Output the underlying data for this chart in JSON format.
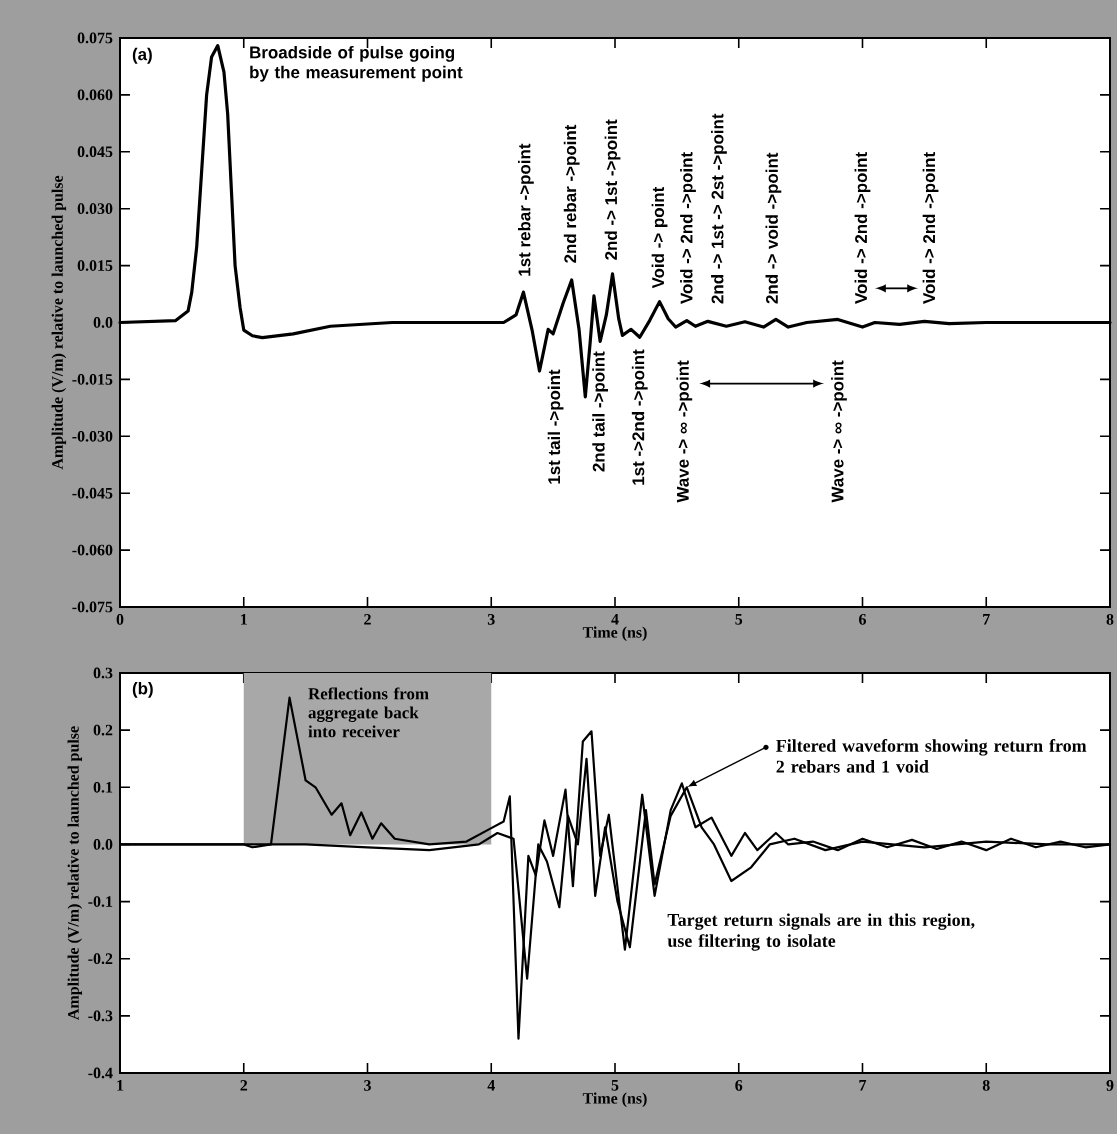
{
  "chart_data": [
    {
      "type": "line",
      "xlabel": "Time (ns)",
      "ylabel": "Amplitude (V/m) relative to launched pulse",
      "xlim": [
        0,
        8
      ],
      "ylim": [
        -0.075,
        0.075
      ],
      "xticks": [
        0,
        1,
        2,
        3,
        4,
        5,
        6,
        7,
        8
      ],
      "yticks": [
        -0.075,
        {
          "value": -0.06,
          "label": "-0.060"
        },
        -0.045,
        {
          "value": -0.03,
          "label": "-0.030"
        },
        -0.015,
        {
          "value": 0,
          "label": "0.0"
        },
        0.015,
        {
          "value": 0.03,
          "label": "0.030"
        },
        0.045,
        {
          "value": 0.06,
          "label": "0.060"
        },
        0.075
      ],
      "series": [
        {
          "color": "#000000",
          "x": [
            0,
            0.45,
            0.55,
            0.58,
            0.62,
            0.66,
            0.7,
            0.74,
            0.79,
            0.84,
            0.87,
            0.9,
            0.93,
            0.97,
            1.0,
            1.07,
            1.15,
            1.4,
            1.7,
            2.2,
            3.1,
            3.2,
            3.26,
            3.33,
            3.39,
            3.46,
            3.5,
            3.58,
            3.65,
            3.71,
            3.76,
            3.8,
            3.83,
            3.88,
            3.93,
            3.98,
            4.03,
            4.06,
            4.13,
            4.2,
            4.28,
            4.36,
            4.43,
            4.49,
            4.58,
            4.65,
            4.75,
            4.9,
            5.05,
            5.2,
            5.3,
            5.4,
            5.55,
            5.8,
            6.0,
            6.1,
            6.3,
            6.5,
            6.7,
            7.0,
            8.0
          ],
          "values": [
            0,
            0.0005,
            0.003,
            0.008,
            0.02,
            0.04,
            0.06,
            0.07,
            0.073,
            0.066,
            0.055,
            0.035,
            0.015,
            0.004,
            -0.002,
            -0.0035,
            -0.004,
            -0.003,
            -0.001,
            0,
            0,
            0.002,
            0.008,
            -0.002,
            -0.0128,
            -0.0018,
            -0.003,
            0.005,
            0.0112,
            -0.002,
            -0.0196,
            -0.005,
            0.007,
            -0.005,
            0.002,
            0.0128,
            0.001,
            -0.0034,
            -0.0018,
            -0.0039,
            0.0005,
            0.0055,
            0.001,
            -0.0012,
            0.0005,
            -0.001,
            0.0003,
            -0.001,
            0.0002,
            -0.0012,
            0.0008,
            -0.0012,
            0,
            0.0008,
            -0.0012,
            0,
            -0.0005,
            0.0003,
            -0.0003,
            0,
            0
          ]
        }
      ],
      "annotations": [
        "(a)",
        {
          "text": "Broadside of pulse going by the measurement point",
          "x": 0.79,
          "y": 0.073
        },
        "1st rebar ->point",
        "2nd rebar ->point",
        "2nd -> 1st ->point",
        "Void -> point",
        "Void -> 2nd ->point",
        "2nd -> 1st -> 2st ->point",
        "2nd -> void ->point",
        "Void -> 2nd ->point",
        "Void -> 2nd ->point",
        "1st tail ->point",
        "2nd tail ->point",
        "1st ->2nd ->point",
        "Wave -> ∞ ->point",
        "Wave -> ∞ ->point"
      ]
    },
    {
      "type": "line",
      "xlabel": "Time (ns)",
      "ylabel": "Amplitude (V/m) relative to launched pulse",
      "xlim": [
        1,
        9
      ],
      "ylim": [
        -0.4,
        0.3
      ],
      "xticks": [
        1,
        2,
        3,
        4,
        5,
        6,
        7,
        8,
        9
      ],
      "yticks": [
        -0.4,
        -0.3,
        -0.2,
        -0.1,
        {
          "value": 0,
          "label": "0.0"
        },
        0.1,
        0.2,
        0.3
      ],
      "bands": [
        {
          "axis": "x",
          "from": 2,
          "to": 4,
          "label": "Reflections from aggregate back into receiver",
          "color": "#a8a8a8"
        }
      ],
      "series": [
        {
          "color": "#000000",
          "x": [
            1,
            2,
            2.07,
            2.22,
            2.37,
            2.5,
            2.58,
            2.71,
            2.79,
            2.86,
            2.95,
            3.04,
            3.11,
            3.22,
            3.5,
            3.8,
            3.97,
            4.1,
            4.15,
            4.22,
            4.3,
            4.36,
            4.43,
            4.5,
            4.6,
            4.66,
            4.74,
            4.81,
            4.88,
            4.95,
            5.08,
            5.22,
            5.32,
            5.45,
            5.54,
            5.65,
            5.78,
            5.94,
            6.05,
            6.15,
            6.3,
            6.4,
            6.6,
            6.8,
            7.0,
            7.2,
            7.4,
            7.6,
            7.8,
            8.0,
            8.2,
            8.4,
            8.6,
            8.8,
            9
          ],
          "values": [
            0,
            0,
            -0.005,
            0,
            0.257,
            0.112,
            0.1,
            0.052,
            0.072,
            0.016,
            0.056,
            0.01,
            0.037,
            0.01,
            0,
            0.005,
            0.025,
            0.04,
            0.084,
            -0.34,
            -0.02,
            -0.054,
            0.042,
            -0.02,
            0.096,
            -0.073,
            0.18,
            0.198,
            -0.02,
            0.052,
            -0.184,
            0.087,
            -0.09,
            0.06,
            0.107,
            0.03,
            0.047,
            -0.02,
            0.02,
            -0.01,
            0.02,
            0,
            0.005,
            -0.01,
            0.01,
            -0.005,
            0.008,
            -0.008,
            0.005,
            -0.01,
            0.01,
            -0.005,
            0.005,
            -0.005,
            0
          ]
        },
        {
          "color": "#000000",
          "x": [
            1,
            2,
            2.5,
            3.0,
            3.5,
            3.9,
            4.05,
            4.18,
            4.29,
            4.38,
            4.45,
            4.55,
            4.62,
            4.7,
            4.77,
            4.84,
            4.92,
            5.02,
            5.12,
            5.25,
            5.32,
            5.45,
            5.58,
            5.7,
            5.8,
            5.94,
            6.1,
            6.25,
            6.45,
            6.7,
            7.0,
            7.5,
            8.0,
            8.5,
            9
          ],
          "values": [
            0,
            0,
            0,
            -0.005,
            -0.01,
            0,
            0.02,
            0.01,
            -0.235,
            0,
            -0.03,
            -0.11,
            0.05,
            0,
            0.15,
            -0.09,
            0.03,
            -0.1,
            -0.18,
            0.06,
            -0.07,
            0.05,
            0.1,
            0.03,
            0,
            -0.064,
            -0.04,
            0,
            0.01,
            -0.01,
            0.005,
            -0.005,
            0.005,
            0,
            0
          ]
        }
      ],
      "annotations": [
        "(b)",
        {
          "text": "Filtered waveform showing return from 2 rebars and 1 void",
          "x": 5.58,
          "y": 0.1
        },
        "Target return signals are in this region, use filtering to isolate"
      ]
    }
  ]
}
